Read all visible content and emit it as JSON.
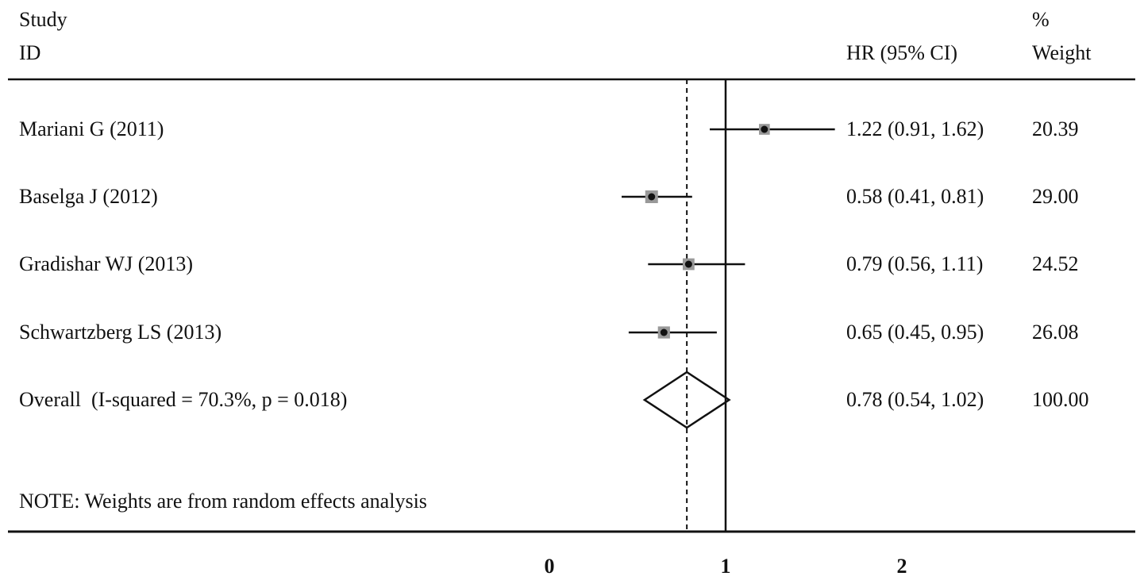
{
  "headers": {
    "study_line1": "Study",
    "study_line2": "ID",
    "hr": "HR (95% CI)",
    "weight_line1": "%",
    "weight_line2": "Weight"
  },
  "note": "NOTE: Weights are from random effects analysis",
  "chart_data": {
    "type": "forest",
    "null_line": 1,
    "pooled_line": 0.78,
    "xlim": [
      0,
      2
    ],
    "xticks": [
      "0",
      "1",
      "2"
    ],
    "studies": [
      {
        "label": "Mariani G (2011)",
        "hr": 1.22,
        "lo": 0.91,
        "hi": 1.62,
        "ci_text": "1.22 (0.91, 1.62)",
        "weight": "20.39"
      },
      {
        "label": "Baselga J (2012)",
        "hr": 0.58,
        "lo": 0.41,
        "hi": 0.81,
        "ci_text": "0.58 (0.41, 0.81)",
        "weight": "29.00"
      },
      {
        "label": "Gradishar WJ (2013)",
        "hr": 0.79,
        "lo": 0.56,
        "hi": 1.11,
        "ci_text": "0.79 (0.56, 1.11)",
        "weight": "24.52"
      },
      {
        "label": "Schwartzberg LS (2013)",
        "hr": 0.65,
        "lo": 0.45,
        "hi": 0.95,
        "ci_text": "0.65 (0.45, 0.95)",
        "weight": "26.08"
      }
    ],
    "overall": {
      "label": "Overall  (I-squared = 70.3%, p = 0.018)",
      "hr": 0.78,
      "lo": 0.54,
      "hi": 1.02,
      "ci_text": "0.78 (0.54, 1.02)",
      "weight": "100.00"
    }
  }
}
